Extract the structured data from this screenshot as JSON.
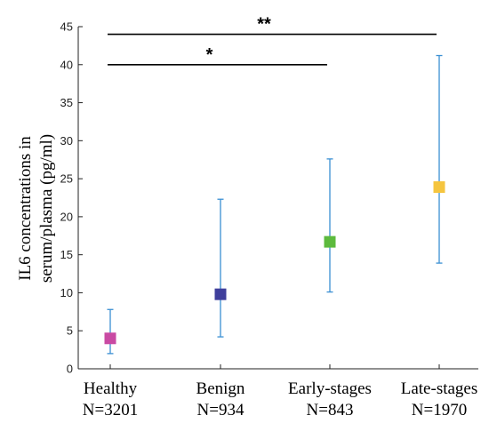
{
  "chart_data": {
    "type": "scatter",
    "title": "",
    "xlabel": "",
    "ylabel_lines": [
      "IL6 concentrations in",
      "serum/plasma (pg/ml)"
    ],
    "ylim": [
      0,
      45
    ],
    "yticks": [
      0,
      5,
      10,
      15,
      20,
      25,
      30,
      35,
      40,
      45
    ],
    "grid": false,
    "legend": "none",
    "categories": [
      {
        "name": "Healthy",
        "n": "N=3201"
      },
      {
        "name": "Benign",
        "n": "N=934"
      },
      {
        "name": "Early-stages",
        "n": "N=843"
      },
      {
        "name": "Late-stages",
        "n": "N=1970"
      }
    ],
    "series": [
      {
        "values": [
          4.0,
          9.8,
          16.7,
          23.9
        ],
        "lower": [
          2.0,
          4.2,
          10.1,
          13.9
        ],
        "upper": [
          7.8,
          22.3,
          27.6,
          41.2
        ],
        "colors": [
          "#c94aa3",
          "#3f3f9c",
          "#5dba3d",
          "#f5c53f"
        ],
        "errorbar_color": "#3a8fd3"
      }
    ],
    "annotations": [
      {
        "label": "**",
        "from": 0,
        "to": 3,
        "y": 44.0
      },
      {
        "label": "*",
        "from": 0,
        "to": 2,
        "y": 40.0
      }
    ]
  }
}
